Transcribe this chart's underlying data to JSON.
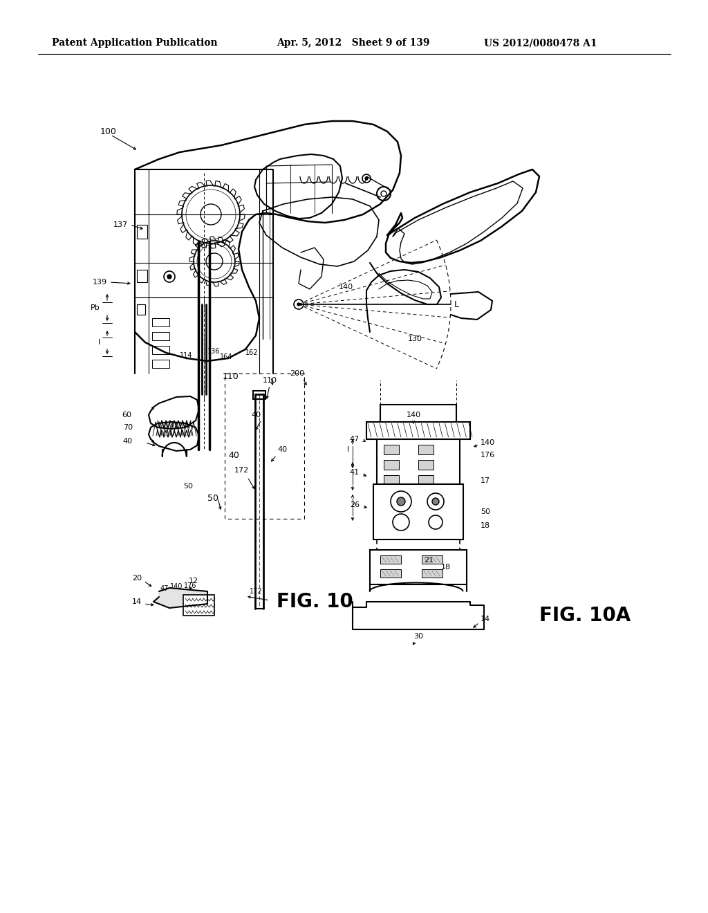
{
  "header_left": "Patent Application Publication",
  "header_center": "Apr. 5, 2012   Sheet 9 of 139",
  "header_right": "US 2012/0080478 A1",
  "background_color": "#ffffff",
  "line_color": "#000000",
  "header_fontsize": 10.5,
  "fig10_label": "FIG. 10",
  "fig10a_label": "FIG. 10A"
}
